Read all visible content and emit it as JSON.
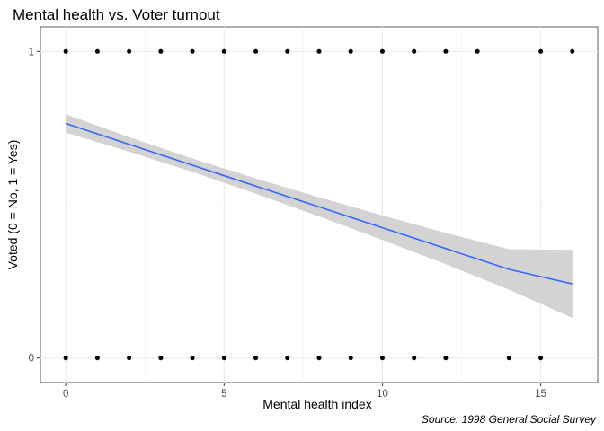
{
  "chart_data": {
    "type": "scatter",
    "title": "Mental health vs. Voter turnout",
    "xlabel": "Mental health index",
    "ylabel": "Voted (0 = No, 1 = Yes)",
    "caption": "Source: 1998 General Social Survey",
    "xlim": [
      -0.8,
      16.8
    ],
    "ylim": [
      -0.08,
      1.08
    ],
    "x_ticks": [
      0,
      5,
      10,
      15
    ],
    "y_ticks": [
      0,
      1
    ],
    "grid": true,
    "legend": "none",
    "series": [
      {
        "kind": "points",
        "color": "#000000",
        "x": [
          0,
          1,
          2,
          3,
          4,
          5,
          6,
          7,
          8,
          9,
          10,
          11,
          12,
          13,
          15,
          16,
          0,
          1,
          2,
          3,
          4,
          5,
          6,
          7,
          8,
          9,
          10,
          11,
          12,
          14,
          15
        ],
        "y": [
          1,
          1,
          1,
          1,
          1,
          1,
          1,
          1,
          1,
          1,
          1,
          1,
          1,
          1,
          1,
          1,
          0,
          0,
          0,
          0,
          0,
          0,
          0,
          0,
          0,
          0,
          0,
          0,
          0,
          0,
          0
        ]
      },
      {
        "kind": "fit",
        "color": "#3366FF",
        "x": [
          0,
          2,
          4,
          6,
          8,
          10,
          12,
          14,
          16
        ],
        "y": [
          0.765,
          0.697,
          0.629,
          0.561,
          0.493,
          0.425,
          0.357,
          0.289,
          0.242
        ],
        "ci_lower": [
          0.735,
          0.673,
          0.607,
          0.536,
          0.462,
          0.385,
          0.306,
          0.223,
          0.131
        ],
        "ci_upper": [
          0.795,
          0.721,
          0.651,
          0.586,
          0.524,
          0.465,
          0.408,
          0.355,
          0.353
        ],
        "ci_color": "#D3D3D3"
      }
    ]
  }
}
